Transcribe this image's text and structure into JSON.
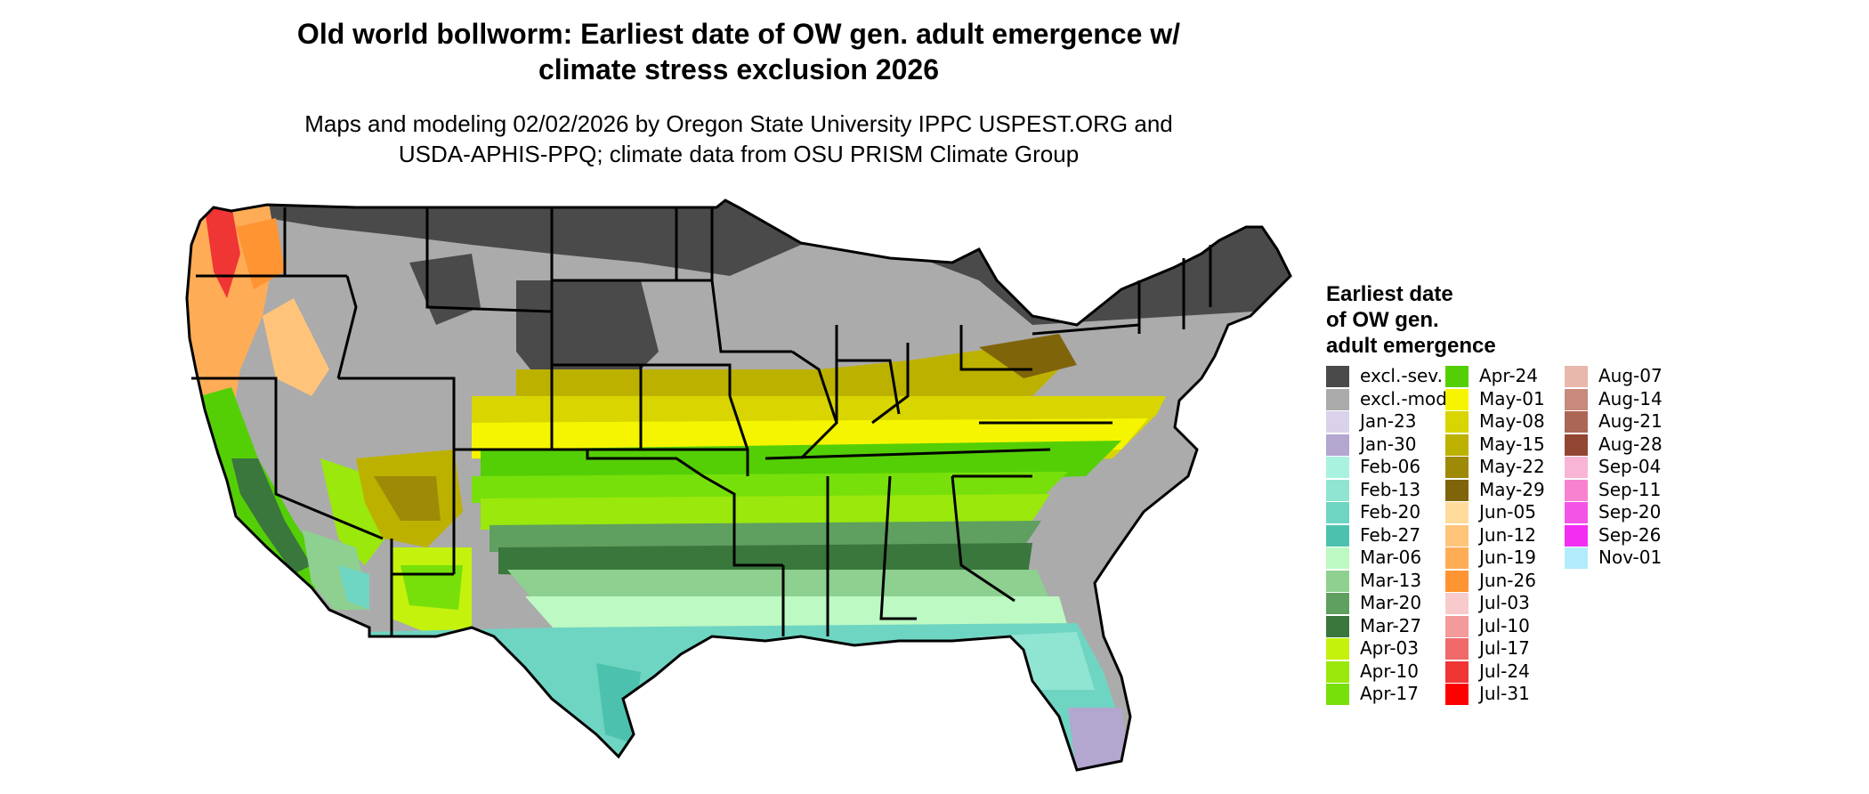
{
  "title_line1": "Old world bollworm: Earliest date of OW gen. adult emergence w/",
  "title_line2": "climate stress exclusion 2026",
  "subtitle_line1": "Maps and modeling 02/02/2026 by Oregon State University IPPC USPEST.ORG and",
  "subtitle_line2": "USDA-APHIS-PPQ; climate data from OSU PRISM Climate Group",
  "legend": {
    "title_lines": [
      "Earliest date",
      "of OW gen.",
      "adult emergence"
    ],
    "columns": [
      [
        {
          "label": "excl.-sev.",
          "color": "#4a4a4a"
        },
        {
          "label": "excl.-mod.",
          "color": "#ababab"
        },
        {
          "label": "Jan-23",
          "color": "#d9d2ea"
        },
        {
          "label": "Jan-30",
          "color": "#b3a6cf"
        },
        {
          "label": "Feb-06",
          "color": "#aaf2e0"
        },
        {
          "label": "Feb-13",
          "color": "#90e4d2"
        },
        {
          "label": "Feb-20",
          "color": "#6ed5c2"
        },
        {
          "label": "Feb-27",
          "color": "#4cc2ae"
        },
        {
          "label": "Mar-06",
          "color": "#bdf9c3"
        },
        {
          "label": "Mar-13",
          "color": "#8ed08f"
        },
        {
          "label": "Mar-20",
          "color": "#5f9f60"
        },
        {
          "label": "Mar-27",
          "color": "#3a773d"
        },
        {
          "label": "Apr-03",
          "color": "#c4f20d"
        },
        {
          "label": "Apr-10",
          "color": "#9ae80c"
        },
        {
          "label": "Apr-17",
          "color": "#77e00a"
        }
      ],
      [
        {
          "label": "Apr-24",
          "color": "#54cf06"
        },
        {
          "label": "May-01",
          "color": "#f5f500"
        },
        {
          "label": "May-08",
          "color": "#d8d500"
        },
        {
          "label": "May-15",
          "color": "#bdb100"
        },
        {
          "label": "May-22",
          "color": "#9e8a07"
        },
        {
          "label": "May-29",
          "color": "#80640a"
        },
        {
          "label": "Jun-05",
          "color": "#ffdb9c"
        },
        {
          "label": "Jun-12",
          "color": "#ffc47a"
        },
        {
          "label": "Jun-19",
          "color": "#ffac57"
        },
        {
          "label": "Jun-26",
          "color": "#ff9433"
        },
        {
          "label": "Jul-03",
          "color": "#f7cbcb"
        },
        {
          "label": "Jul-10",
          "color": "#f39a9a"
        },
        {
          "label": "Jul-17",
          "color": "#f06969"
        },
        {
          "label": "Jul-24",
          "color": "#f03535"
        },
        {
          "label": "Jul-31",
          "color": "#ff0000"
        }
      ],
      [
        {
          "label": "Aug-07",
          "color": "#e8b8ac"
        },
        {
          "label": "Aug-14",
          "color": "#c88a7d"
        },
        {
          "label": "Aug-21",
          "color": "#ac6656"
        },
        {
          "label": "Aug-28",
          "color": "#934533"
        },
        {
          "label": "Sep-04",
          "color": "#f9b5d6"
        },
        {
          "label": "Sep-11",
          "color": "#f782d0"
        },
        {
          "label": "Sep-20",
          "color": "#f454e6"
        },
        {
          "label": "Sep-26",
          "color": "#f22ef3"
        },
        {
          "label": "Nov-01",
          "color": "#b2ecfb"
        }
      ]
    ]
  }
}
